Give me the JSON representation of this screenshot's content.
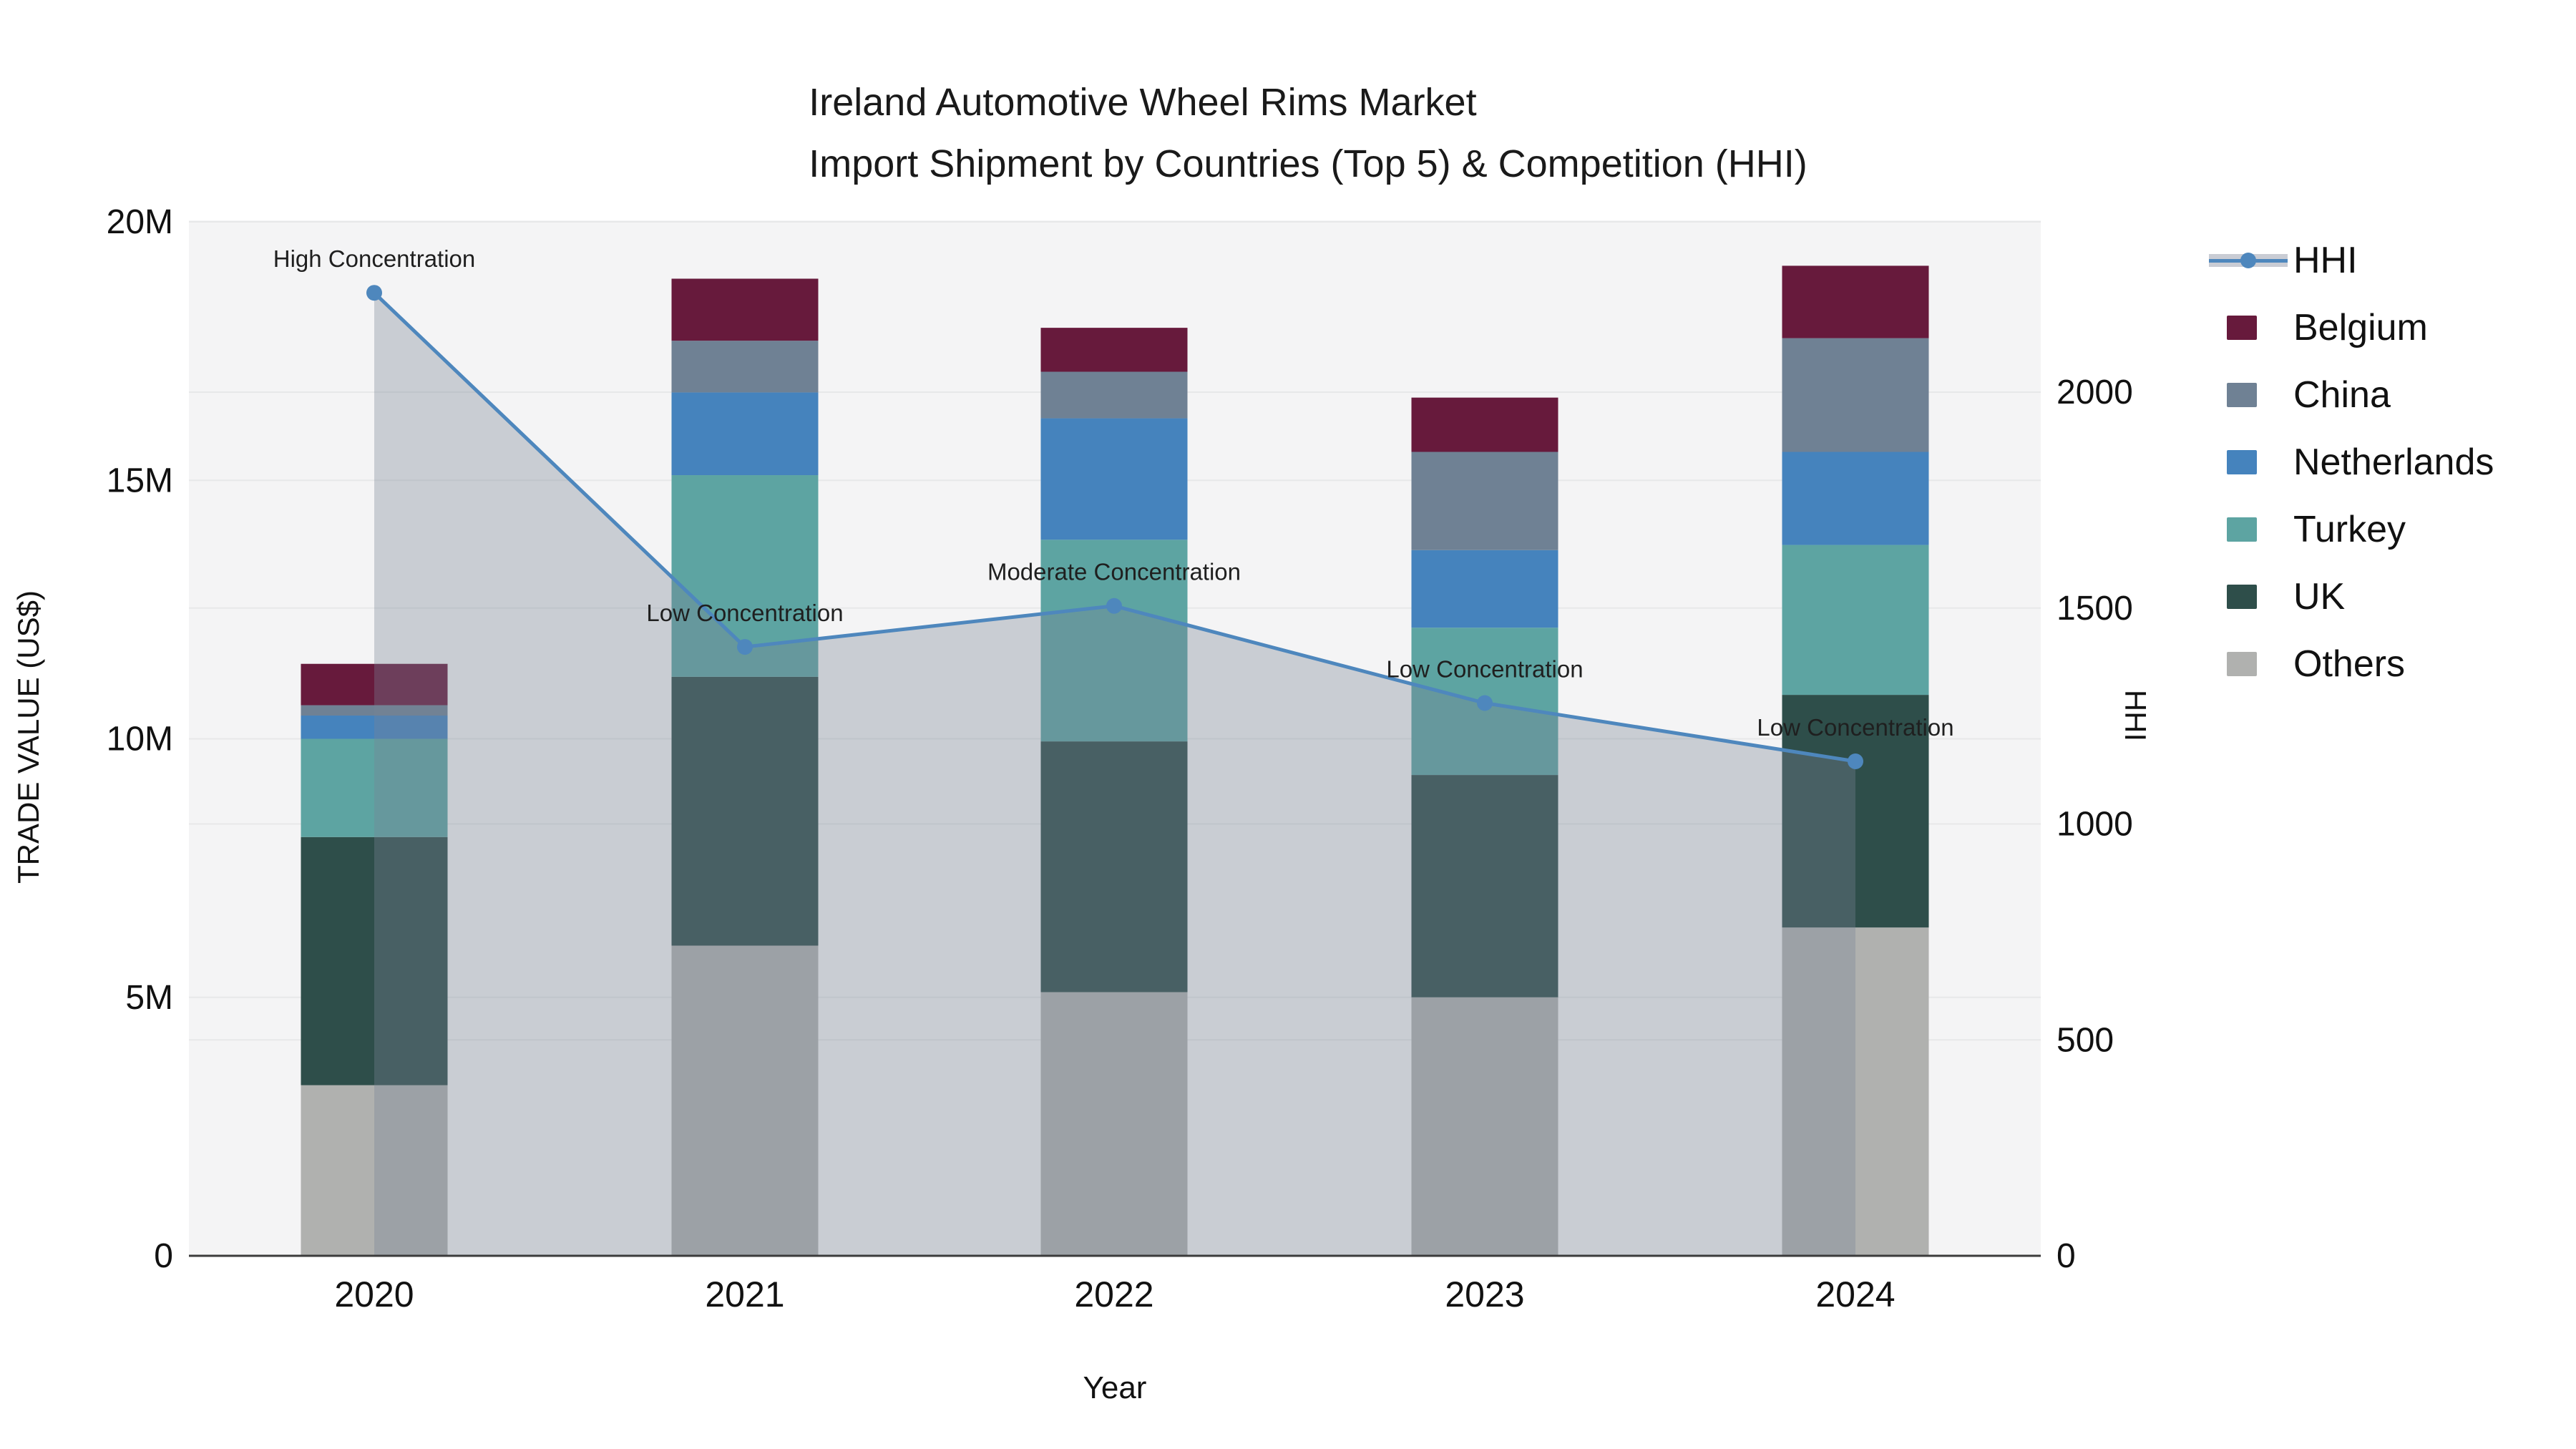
{
  "title": {
    "line1": "Ireland Automotive Wheel Rims Market",
    "line2": "Import Shipment by Countries (Top 5) & Competition (HHI)"
  },
  "chart_data": {
    "type": "stacked-bar-with-line",
    "categories": [
      "2020",
      "2021",
      "2022",
      "2023",
      "2024"
    ],
    "value_unit": "US$ millions",
    "series": [
      {
        "name": "Others",
        "color": "#b0b1af",
        "values": [
          3.3,
          6.0,
          5.1,
          5.0,
          6.35
        ]
      },
      {
        "name": "UK",
        "color": "#2e4e4a",
        "values": [
          4.8,
          5.2,
          4.85,
          4.3,
          4.5
        ]
      },
      {
        "name": "Turkey",
        "color": "#5da4a2",
        "values": [
          1.9,
          3.9,
          3.9,
          2.85,
          2.9
        ]
      },
      {
        "name": "Netherlands",
        "color": "#4583bd",
        "values": [
          0.45,
          1.6,
          2.35,
          1.5,
          1.8
        ]
      },
      {
        "name": "China",
        "color": "#6f8194",
        "values": [
          0.2,
          1.0,
          0.9,
          1.9,
          2.2
        ]
      },
      {
        "name": "Belgium",
        "color": "#671a3c",
        "values": [
          0.8,
          1.2,
          0.85,
          1.05,
          1.4
        ]
      }
    ],
    "bar_totals_millions": [
      11.45,
      18.9,
      17.95,
      16.6,
      19.15
    ],
    "line_series": {
      "name": "HHI",
      "values": [
        2230,
        1410,
        1505,
        1280,
        1145
      ],
      "color": "#4e87bd",
      "area_fill": "rgba(120,131,150,0.35)"
    },
    "annotations": [
      {
        "year": "2020",
        "text": "High Concentration"
      },
      {
        "year": "2021",
        "text": "Low Concentration"
      },
      {
        "year": "2022",
        "text": "Moderate Concentration"
      },
      {
        "year": "2023",
        "text": "Low Concentration"
      },
      {
        "year": "2024",
        "text": "Low Concentration"
      }
    ],
    "y_left": {
      "label": "TRADE VALUE (US$)",
      "ticks": [
        "0",
        "5M",
        "10M",
        "15M",
        "20M"
      ],
      "tick_values_millions": [
        0,
        5,
        10,
        15,
        20
      ],
      "range_millions": [
        0,
        20
      ]
    },
    "y_right": {
      "label": "HHI",
      "ticks": [
        "0",
        "500",
        "1000",
        "1500",
        "2000"
      ],
      "tick_values": [
        0,
        500,
        1000,
        1500,
        2000
      ],
      "range": [
        0,
        2000
      ]
    },
    "x": {
      "label": "Year"
    },
    "grid": true,
    "legend_position": "right"
  },
  "legend": {
    "items": [
      {
        "label": "HHI",
        "type": "line",
        "line_color": "#4e87bd",
        "band_color": "#c9ccd4"
      },
      {
        "label": "Belgium",
        "type": "swatch",
        "color": "#671a3c"
      },
      {
        "label": "China",
        "type": "swatch",
        "color": "#6f8194"
      },
      {
        "label": "Netherlands",
        "type": "swatch",
        "color": "#4583bd"
      },
      {
        "label": "Turkey",
        "type": "swatch",
        "color": "#5da4a2"
      },
      {
        "label": "UK",
        "type": "swatch",
        "color": "#2e4e4a"
      },
      {
        "label": "Others",
        "type": "swatch",
        "color": "#b0b1af"
      }
    ]
  },
  "colors": {
    "plot_bg": "#f4f4f5",
    "gridline": "#e7e8e9",
    "axis_line": "#3b3b3b",
    "text": "#111111",
    "annotation_text": "#1f1f1f"
  }
}
